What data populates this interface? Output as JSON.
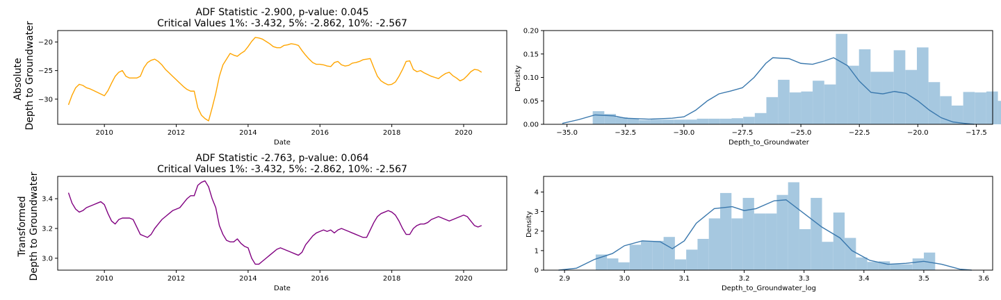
{
  "chart_data": [
    {
      "id": "abs_series",
      "type": "line",
      "title": [
        "ADF Statistic -2.900, p-value: 0.045",
        "Critical Values 1%: -3.432, 5%: -2.862, 10%: -2.567"
      ],
      "xlabel": "Date",
      "ylabel": [
        "Absolute",
        "Depth to Groundwater"
      ],
      "xlim": [
        2008.7,
        2021.2
      ],
      "ylim": [
        -34.4,
        -18.0
      ],
      "xticks": [
        2010,
        2012,
        2014,
        2016,
        2018,
        2020
      ],
      "yticks": [
        -30,
        -25,
        -20
      ],
      "color": "#ffa500",
      "x": [
        2009.0,
        2009.1,
        2009.2,
        2009.3,
        2009.4,
        2009.5,
        2009.6,
        2009.7,
        2009.8,
        2009.9,
        2010.0,
        2010.1,
        2010.2,
        2010.3,
        2010.4,
        2010.5,
        2010.6,
        2010.7,
        2010.8,
        2010.9,
        2011.0,
        2011.1,
        2011.2,
        2011.3,
        2011.4,
        2011.5,
        2011.6,
        2011.7,
        2011.8,
        2011.9,
        2012.0,
        2012.1,
        2012.2,
        2012.3,
        2012.4,
        2012.5,
        2012.6,
        2012.7,
        2012.8,
        2012.9,
        2013.0,
        2013.1,
        2013.2,
        2013.3,
        2013.4,
        2013.5,
        2013.6,
        2013.7,
        2013.8,
        2013.9,
        2014.0,
        2014.1,
        2014.2,
        2014.3,
        2014.4,
        2014.5,
        2014.6,
        2014.7,
        2014.8,
        2014.9,
        2015.0,
        2015.1,
        2015.2,
        2015.3,
        2015.4,
        2015.5,
        2015.6,
        2015.7,
        2015.8,
        2015.9,
        2016.0,
        2016.1,
        2016.2,
        2016.3,
        2016.4,
        2016.5,
        2016.6,
        2016.7,
        2016.8,
        2016.9,
        2017.0,
        2017.1,
        2017.2,
        2017.3,
        2017.4,
        2017.5,
        2017.6,
        2017.7,
        2017.8,
        2017.9,
        2018.0,
        2018.1,
        2018.2,
        2018.3,
        2018.4,
        2018.5,
        2018.6,
        2018.7,
        2018.8,
        2018.9,
        2019.0,
        2019.1,
        2019.2,
        2019.3,
        2019.4,
        2019.5,
        2019.6,
        2019.7,
        2019.8,
        2019.9,
        2020.0,
        2020.1,
        2020.2,
        2020.3,
        2020.4,
        2020.5
      ],
      "y": [
        -31.0,
        -29.3,
        -28.0,
        -27.4,
        -27.6,
        -28.0,
        -28.2,
        -28.5,
        -28.8,
        -29.1,
        -29.4,
        -28.5,
        -27.2,
        -26.0,
        -25.3,
        -25.0,
        -26.0,
        -26.3,
        -26.3,
        -26.3,
        -26.0,
        -24.5,
        -23.6,
        -23.2,
        -23.0,
        -23.4,
        -24.0,
        -24.8,
        -25.4,
        -26.0,
        -26.6,
        -27.2,
        -27.8,
        -28.3,
        -28.6,
        -28.6,
        -31.5,
        -32.8,
        -33.4,
        -33.8,
        -31.5,
        -29.0,
        -26.0,
        -24.0,
        -23.0,
        -22.0,
        -22.3,
        -22.5,
        -22.0,
        -21.6,
        -20.8,
        -19.9,
        -19.2,
        -19.3,
        -19.5,
        -19.9,
        -20.3,
        -20.8,
        -21.0,
        -21.0,
        -20.6,
        -20.5,
        -20.3,
        -20.4,
        -20.6,
        -21.5,
        -22.3,
        -23.0,
        -23.6,
        -23.9,
        -23.9,
        -24.0,
        -24.2,
        -24.3,
        -23.6,
        -23.4,
        -24.0,
        -24.2,
        -24.1,
        -23.7,
        -23.6,
        -23.4,
        -23.1,
        -23.0,
        -22.9,
        -24.5,
        -26.0,
        -26.8,
        -27.2,
        -27.5,
        -27.4,
        -27.0,
        -26.0,
        -24.8,
        -23.4,
        -23.3,
        -24.8,
        -25.2,
        -25.0,
        -25.4,
        -25.7,
        -26.0,
        -26.2,
        -26.4,
        -25.9,
        -25.5,
        -25.3,
        -25.9,
        -26.3,
        -26.8,
        -26.5,
        -25.9,
        -25.2,
        -24.8,
        -24.9,
        -25.3
      ]
    },
    {
      "id": "abs_hist",
      "type": "bar",
      "xlabel": "Depth_to_Groundwater",
      "ylabel": "Density",
      "xlim": [
        -36.0,
        -16.8
      ],
      "ylim": [
        0,
        0.2
      ],
      "xticks": [
        -35.0,
        -32.5,
        -30.0,
        -27.5,
        -25.0,
        -22.5,
        -20.0,
        -17.5
      ],
      "xtick_labels": [
        "−35.0",
        "−32.5",
        "−30.0",
        "−27.5",
        "−25.0",
        "−22.5",
        "−20.0",
        "−17.5"
      ],
      "yticks": [
        0.0,
        0.05,
        0.1,
        0.15,
        0.2
      ],
      "ytick_labels": [
        "0.00",
        "0.05",
        "0.10",
        "0.15",
        "0.20"
      ],
      "bar_color": "#a6c8e0",
      "kde_color": "#3a78ad",
      "bin_start": -33.9,
      "bin_width": 0.495,
      "values": [
        0.028,
        0.022,
        0.015,
        0.012,
        0.009,
        0.01,
        0.01,
        0.01,
        0.01,
        0.012,
        0.012,
        0.012,
        0.013,
        0.016,
        0.024,
        0.058,
        0.095,
        0.068,
        0.07,
        0.093,
        0.085,
        0.193,
        0.125,
        0.16,
        0.112,
        0.112,
        0.158,
        0.116,
        0.164,
        0.09,
        0.06,
        0.04,
        0.069,
        0.068,
        0.07,
        0.05,
        0.022,
        0.044
      ],
      "kde_x": [
        -35.2,
        -34.5,
        -33.8,
        -33.0,
        -32.5,
        -31.5,
        -30.5,
        -30.0,
        -29.5,
        -29.0,
        -28.5,
        -28.0,
        -27.5,
        -27.0,
        -26.5,
        -26.2,
        -25.5,
        -25.0,
        -24.5,
        -24.0,
        -23.6,
        -23.0,
        -22.5,
        -22.0,
        -21.5,
        -21.0,
        -20.5,
        -20.0,
        -19.5,
        -19.0,
        -18.5,
        -18.0,
        -17.6
      ],
      "kde_y": [
        0.002,
        0.01,
        0.02,
        0.018,
        0.013,
        0.011,
        0.013,
        0.016,
        0.03,
        0.05,
        0.065,
        0.071,
        0.078,
        0.1,
        0.13,
        0.142,
        0.14,
        0.13,
        0.128,
        0.135,
        0.142,
        0.125,
        0.092,
        0.068,
        0.065,
        0.07,
        0.066,
        0.05,
        0.03,
        0.014,
        0.005,
        0.002,
        0.0
      ]
    },
    {
      "id": "trans_series",
      "type": "line",
      "title": [
        "ADF Statistic -2.763, p-value: 0.064",
        "Critical Values 1%: -3.432, 5%: -2.862, 10%: -2.567"
      ],
      "xlabel": "Date",
      "ylabel": [
        "Transformed",
        "Depth to Groundwater"
      ],
      "xlim": [
        2008.7,
        2021.2
      ],
      "ylim": [
        2.92,
        3.55
      ],
      "xticks": [
        2010,
        2012,
        2014,
        2016,
        2018,
        2020
      ],
      "yticks": [
        3.0,
        3.2,
        3.4
      ],
      "ytick_labels": [
        "3.0",
        "3.2",
        "3.4"
      ],
      "color": "#800080",
      "x": [
        2009.0,
        2009.1,
        2009.2,
        2009.3,
        2009.4,
        2009.5,
        2009.6,
        2009.7,
        2009.8,
        2009.9,
        2010.0,
        2010.1,
        2010.2,
        2010.3,
        2010.4,
        2010.5,
        2010.6,
        2010.7,
        2010.8,
        2010.9,
        2011.0,
        2011.1,
        2011.2,
        2011.3,
        2011.4,
        2011.5,
        2011.6,
        2011.7,
        2011.8,
        2011.9,
        2012.0,
        2012.1,
        2012.2,
        2012.3,
        2012.4,
        2012.5,
        2012.6,
        2012.7,
        2012.8,
        2012.9,
        2013.0,
        2013.1,
        2013.2,
        2013.3,
        2013.4,
        2013.5,
        2013.6,
        2013.7,
        2013.8,
        2013.9,
        2014.0,
        2014.1,
        2014.2,
        2014.3,
        2014.4,
        2014.5,
        2014.6,
        2014.7,
        2014.8,
        2014.9,
        2015.0,
        2015.1,
        2015.2,
        2015.3,
        2015.4,
        2015.5,
        2015.6,
        2015.7,
        2015.8,
        2015.9,
        2016.0,
        2016.1,
        2016.2,
        2016.3,
        2016.4,
        2016.5,
        2016.6,
        2016.7,
        2016.8,
        2016.9,
        2017.0,
        2017.1,
        2017.2,
        2017.3,
        2017.4,
        2017.5,
        2017.6,
        2017.7,
        2017.8,
        2017.9,
        2018.0,
        2018.1,
        2018.2,
        2018.3,
        2018.4,
        2018.5,
        2018.6,
        2018.7,
        2018.8,
        2018.9,
        2019.0,
        2019.1,
        2019.2,
        2019.3,
        2019.4,
        2019.5,
        2019.6,
        2019.7,
        2019.8,
        2019.9,
        2020.0,
        2020.1,
        2020.2,
        2020.3,
        2020.4,
        2020.5
      ],
      "y": [
        3.44,
        3.37,
        3.33,
        3.31,
        3.32,
        3.34,
        3.35,
        3.36,
        3.37,
        3.38,
        3.36,
        3.3,
        3.25,
        3.23,
        3.26,
        3.27,
        3.27,
        3.27,
        3.26,
        3.21,
        3.16,
        3.15,
        3.14,
        3.16,
        3.2,
        3.23,
        3.26,
        3.28,
        3.3,
        3.32,
        3.33,
        3.34,
        3.37,
        3.4,
        3.42,
        3.42,
        3.49,
        3.51,
        3.52,
        3.48,
        3.4,
        3.34,
        3.22,
        3.16,
        3.12,
        3.11,
        3.11,
        3.13,
        3.1,
        3.08,
        3.07,
        3.0,
        2.96,
        2.96,
        2.98,
        3.0,
        3.02,
        3.04,
        3.06,
        3.07,
        3.06,
        3.05,
        3.04,
        3.03,
        3.02,
        3.04,
        3.09,
        3.12,
        3.15,
        3.17,
        3.18,
        3.19,
        3.18,
        3.19,
        3.17,
        3.19,
        3.2,
        3.19,
        3.18,
        3.17,
        3.16,
        3.15,
        3.14,
        3.14,
        3.19,
        3.24,
        3.28,
        3.3,
        3.31,
        3.32,
        3.31,
        3.29,
        3.25,
        3.2,
        3.16,
        3.16,
        3.2,
        3.22,
        3.23,
        3.23,
        3.24,
        3.26,
        3.27,
        3.28,
        3.27,
        3.26,
        3.25,
        3.26,
        3.27,
        3.28,
        3.29,
        3.28,
        3.25,
        3.22,
        3.21,
        3.22
      ]
    },
    {
      "id": "trans_hist",
      "type": "bar",
      "xlabel": "Depth_to_Groundwater_log",
      "ylabel": "Density",
      "xlim": [
        2.865,
        3.615
      ],
      "ylim": [
        0,
        4.8
      ],
      "xticks": [
        2.9,
        3.0,
        3.1,
        3.2,
        3.3,
        3.4,
        3.5,
        3.6
      ],
      "xtick_labels": [
        "2.9",
        "3.0",
        "3.1",
        "3.2",
        "3.3",
        "3.4",
        "3.5",
        "3.6"
      ],
      "yticks": [
        0,
        1,
        2,
        3,
        4
      ],
      "ytick_labels": [
        "0",
        "1",
        "2",
        "3",
        "4"
      ],
      "bar_color": "#a6c8e0",
      "kde_color": "#3a78ad",
      "bin_start": 2.952,
      "bin_width": 0.0189,
      "values": [
        0.8,
        0.6,
        0.4,
        1.3,
        1.5,
        1.5,
        1.7,
        0.55,
        1.05,
        1.6,
        2.65,
        3.95,
        2.65,
        3.7,
        2.9,
        2.9,
        3.85,
        4.5,
        2.1,
        3.7,
        1.45,
        2.95,
        1.65,
        0.65,
        0.42,
        0.45,
        0.3,
        0.3,
        0.6,
        0.9
      ],
      "kde_x": [
        2.89,
        2.92,
        2.95,
        2.98,
        3.0,
        3.03,
        3.06,
        3.08,
        3.1,
        3.12,
        3.15,
        3.18,
        3.2,
        3.22,
        3.25,
        3.27,
        3.3,
        3.33,
        3.36,
        3.38,
        3.41,
        3.44,
        3.47,
        3.5,
        3.53,
        3.56,
        3.58
      ],
      "kde_y": [
        0.0,
        0.1,
        0.55,
        0.85,
        1.25,
        1.5,
        1.45,
        1.1,
        1.5,
        2.4,
        3.15,
        3.25,
        3.05,
        3.15,
        3.55,
        3.6,
        2.9,
        2.2,
        1.65,
        1.0,
        0.5,
        0.3,
        0.35,
        0.45,
        0.3,
        0.05,
        0.0
      ]
    }
  ]
}
